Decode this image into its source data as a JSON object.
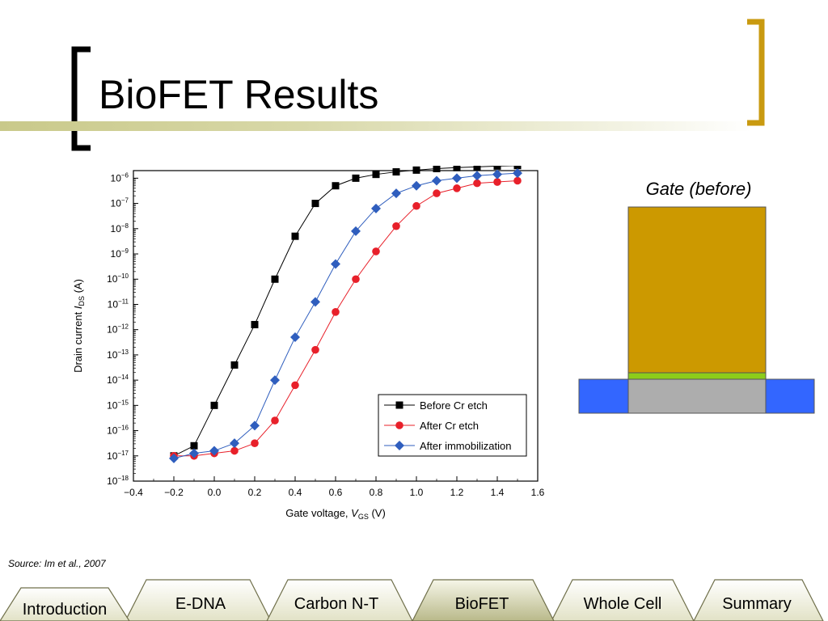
{
  "slide": {
    "title": "BioFET Results",
    "source": "Source: Im et al., 2007",
    "gate_label": "Gate (before)",
    "accent_color": "#c99a10"
  },
  "nav_tabs": [
    {
      "label": "Introduction",
      "active": false
    },
    {
      "label": "E-DNA",
      "active": false
    },
    {
      "label": "Carbon N-T",
      "active": false
    },
    {
      "label": "BioFET",
      "active": true
    },
    {
      "label": "Whole Cell",
      "active": false
    },
    {
      "label": "Summary",
      "active": false
    }
  ],
  "device_colors": {
    "gate": "#cc9900",
    "dielectric": "#8ccc1a",
    "channel": "#adadad",
    "contacts": "#3366ff"
  },
  "chart_data": {
    "type": "scatter",
    "xlabel": "Gate voltage, V_GS (V)",
    "ylabel": "Drain current I_DS (A)",
    "xlim": [
      -0.4,
      1.6
    ],
    "ylim_exponent": [
      -18,
      -5.7
    ],
    "y_scale": "log",
    "x_ticks": [
      "-0.4",
      "-0.2",
      "0.0",
      "0.2",
      "0.4",
      "0.6",
      "0.8",
      "1.0",
      "1.2",
      "1.4",
      "1.6"
    ],
    "x_tick_values": [
      -0.4,
      -0.2,
      0.0,
      0.2,
      0.4,
      0.6,
      0.8,
      1.0,
      1.2,
      1.4,
      1.6
    ],
    "y_tick_exponents": [
      -6,
      -7,
      -8,
      -9,
      -10,
      -11,
      -12,
      -13,
      -14,
      -15,
      -16,
      -17,
      -18
    ],
    "legend_position": "bottom-right",
    "grid": false,
    "series": [
      {
        "name": "Before Cr etch",
        "color": "#000000",
        "marker": "square",
        "x": [
          -0.2,
          -0.1,
          0.0,
          0.1,
          0.2,
          0.3,
          0.4,
          0.5,
          0.6,
          0.7,
          0.8,
          0.9,
          1.0,
          1.1,
          1.2,
          1.3,
          1.4,
          1.5
        ],
        "y_exp": [
          -17.0,
          -16.6,
          -15.0,
          -13.4,
          -11.8,
          -10.0,
          -8.3,
          -7.0,
          -6.3,
          -6.0,
          -5.85,
          -5.75,
          -5.68,
          -5.62,
          -5.58,
          -5.55,
          -5.52,
          -5.5
        ]
      },
      {
        "name": "After Cr etch",
        "color": "#e8202a",
        "marker": "circle",
        "x": [
          -0.2,
          -0.1,
          0.0,
          0.1,
          0.2,
          0.3,
          0.4,
          0.5,
          0.6,
          0.7,
          0.8,
          0.9,
          1.0,
          1.1,
          1.2,
          1.3,
          1.4,
          1.5
        ],
        "y_exp": [
          -17.0,
          -17.0,
          -16.9,
          -16.8,
          -16.5,
          -15.6,
          -14.2,
          -12.8,
          -11.3,
          -10.0,
          -8.9,
          -7.9,
          -7.1,
          -6.6,
          -6.4,
          -6.2,
          -6.15,
          -6.1
        ]
      },
      {
        "name": "After immobilization",
        "color": "#2f5ebe",
        "marker": "diamond",
        "x": [
          -0.2,
          -0.1,
          0.0,
          0.1,
          0.2,
          0.3,
          0.4,
          0.5,
          0.6,
          0.7,
          0.8,
          0.9,
          1.0,
          1.1,
          1.2,
          1.3,
          1.4,
          1.5
        ],
        "y_exp": [
          -17.1,
          -16.9,
          -16.8,
          -16.5,
          -15.8,
          -14.0,
          -12.3,
          -10.9,
          -9.4,
          -8.1,
          -7.2,
          -6.6,
          -6.3,
          -6.1,
          -6.0,
          -5.9,
          -5.85,
          -5.8
        ]
      }
    ]
  }
}
